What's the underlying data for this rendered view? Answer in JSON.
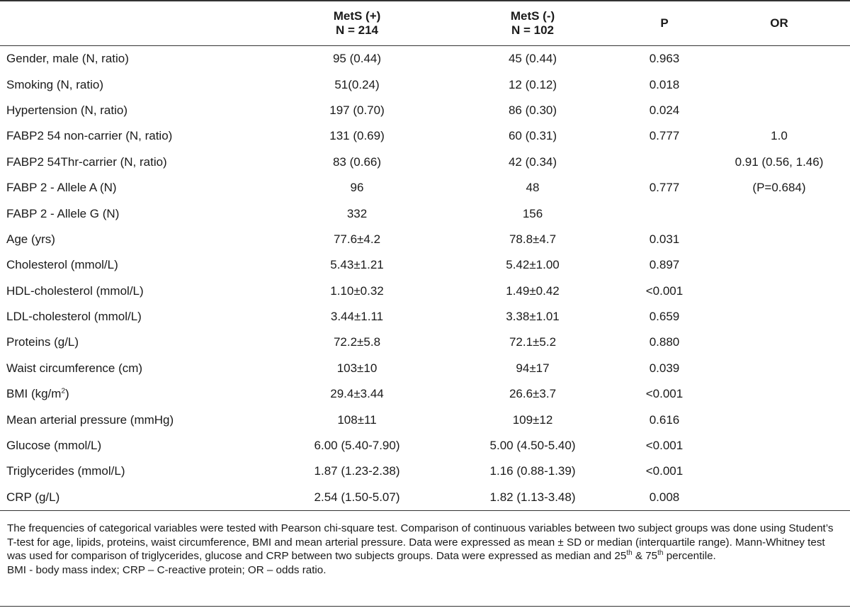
{
  "table": {
    "headers": {
      "variable": "",
      "mets_pos": "MetS (+)",
      "mets_pos_n": "N = 214",
      "mets_neg": "MetS (-)",
      "mets_neg_n": "N = 102",
      "p": "P",
      "or": "OR"
    },
    "rows": [
      {
        "label": "Gender, male (N, ratio)",
        "pos": "95 (0.44)",
        "neg": "45 (0.44)",
        "p": "0.963",
        "or": ""
      },
      {
        "label": "Smoking (N, ratio)",
        "pos": "51(0.24)",
        "neg": "12 (0.12)",
        "p": "0.018",
        "or": ""
      },
      {
        "label": "Hypertension (N, ratio)",
        "pos": "197 (0.70)",
        "neg": "86 (0.30)",
        "p": "0.024",
        "or": ""
      },
      {
        "label": "FABP2 54 non-carrier (N, ratio)",
        "pos": "131 (0.69)",
        "neg": "60 (0.31)",
        "p": "0.777",
        "or": "1.0"
      },
      {
        "label": "FABP2 54Thr-carrier (N, ratio)",
        "pos": "83 (0.66)",
        "neg": "42 (0.34)",
        "p": "",
        "or": "0.91 (0.56, 1.46)"
      },
      {
        "label": "FABP 2 - Allele A (N)",
        "pos": "96",
        "neg": "48",
        "p": "0.777",
        "or": "(P=0.684)"
      },
      {
        "label": "FABP 2 - Allele G (N)",
        "pos": "332",
        "neg": "156",
        "p": "",
        "or": ""
      },
      {
        "label": "Age (yrs)",
        "pos": "77.6±4.2",
        "neg": "78.8±4.7",
        "p": "0.031",
        "or": ""
      },
      {
        "label": "Cholesterol (mmol/L)",
        "pos": "5.43±1.21",
        "neg": "5.42±1.00",
        "p": "0.897",
        "or": ""
      },
      {
        "label": "HDL-cholesterol (mmol/L)",
        "pos": "1.10±0.32",
        "neg": "1.49±0.42",
        "p": "<0.001",
        "or": ""
      },
      {
        "label": "LDL-cholesterol (mmol/L)",
        "pos": "3.44±1.11",
        "neg": "3.38±1.01",
        "p": "0.659",
        "or": ""
      },
      {
        "label": "Proteins (g/L)",
        "pos": "72.2±5.8",
        "neg": "72.1±5.2",
        "p": "0.880",
        "or": ""
      },
      {
        "label": "Waist circumference (cm)",
        "pos": "103±10",
        "neg": "94±17",
        "p": "0.039",
        "or": ""
      },
      {
        "label_pre": "BMI (kg/m",
        "label_sup": "2",
        "label_post": ")",
        "pos": "29.4±3.44",
        "neg": "26.6±3.7",
        "p": "<0.001",
        "or": ""
      },
      {
        "label": "Mean arterial pressure (mmHg)",
        "pos": "108±11",
        "neg": "109±12",
        "p": "0.616",
        "or": ""
      },
      {
        "label": "Glucose (mmol/L)",
        "pos": "6.00 (5.40-7.90)",
        "neg": "5.00 (4.50-5.40)",
        "p": "<0.001",
        "or": ""
      },
      {
        "label": "Triglycerides (mmol/L)",
        "pos": "1.87 (1.23-2.38)",
        "neg": "1.16 (0.88-1.39)",
        "p": "<0.001",
        "or": ""
      },
      {
        "label": "CRP (g/L)",
        "pos": "2.54 (1.50-5.07)",
        "neg": "1.82 (1.13-3.48)",
        "p": "0.008",
        "or": ""
      }
    ]
  },
  "notes": {
    "main_pre": "The frequencies of categorical variables were tested with Pearson chi-square test. Comparison of continuous variables between two subject groups was done using Student’s T-test for age, lipids, proteins, waist circumference, BMI and mean arterial pressure. Data were expressed as mean ± SD or median (interquartile range). Mann-Whitney test was used for comparison of triglycerides, glucose and CRP between two subjects groups. Data were expressed as median and 25",
    "sup_1": "th",
    "main_mid": " & 75",
    "sup_2": "th",
    "main_post": " percentile.",
    "abbreviations": "BMI - body mass index; CRP – C-reactive protein; OR – odds ratio."
  }
}
